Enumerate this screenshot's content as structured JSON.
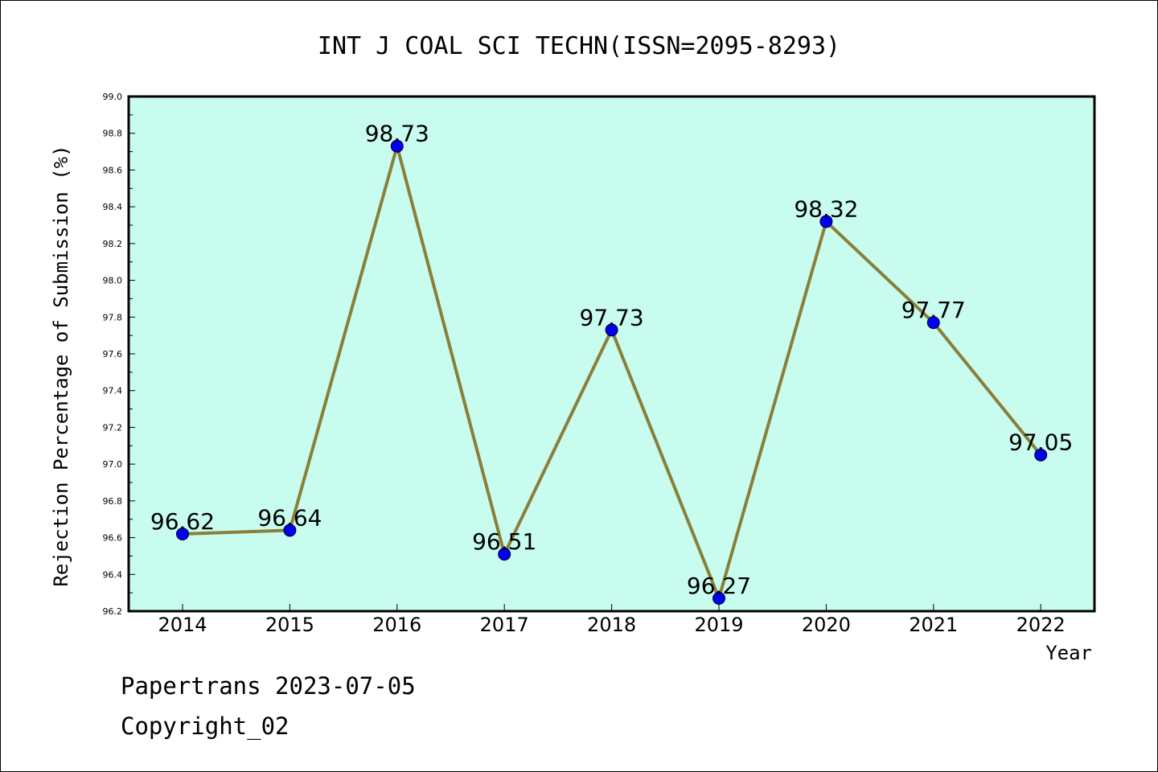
{
  "footer": {
    "line1": "Papertrans 2023-07-05",
    "line2": "Copyright_02"
  },
  "chart_data": {
    "type": "line",
    "title": "INT J COAL SCI TECHN(ISSN=2095-8293)",
    "xlabel": "Year",
    "ylabel": "Rejection Percentage of Submission (%)",
    "categories": [
      "2014",
      "2015",
      "2016",
      "2017",
      "2018",
      "2019",
      "2020",
      "2021",
      "2022"
    ],
    "series": [
      {
        "values": [
          96.62,
          96.64,
          98.73,
          96.51,
          97.73,
          96.27,
          98.32,
          97.77,
          97.05
        ]
      }
    ],
    "data_labels": [
      "96.62",
      "96.64",
      "98.73",
      "96.51",
      "97.73",
      "96.27",
      "98.32",
      "97.77",
      "97.05"
    ],
    "ylim": [
      96.2,
      99.0
    ],
    "y_ticks": [
      "96.2",
      "96.4",
      "96.6",
      "96.8",
      "97.0",
      "97.2",
      "97.4",
      "97.6",
      "97.8",
      "98.0",
      "98.2",
      "98.4",
      "98.6",
      "98.8",
      "99.0"
    ],
    "grid": false,
    "legend": "none",
    "colors": {
      "plot_background": "#c8fcee",
      "line": "#8a7f3a",
      "marker": "#0000ee"
    }
  }
}
